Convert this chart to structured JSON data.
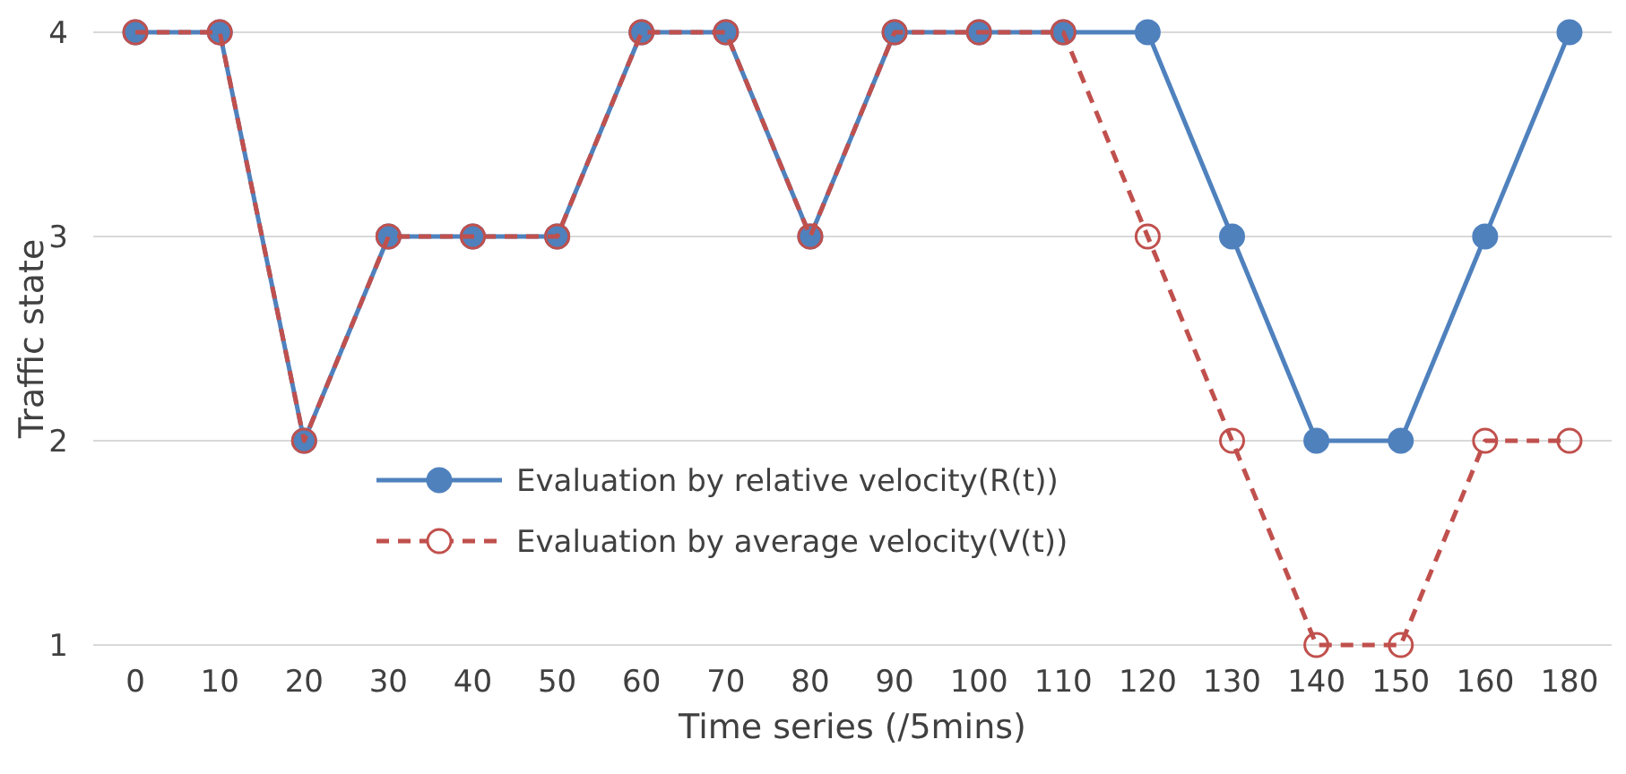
{
  "chart_data": {
    "type": "line",
    "xlabel": "Time series (/5mins)",
    "ylabel": "Traffic state",
    "categories": [
      "0",
      "10",
      "20",
      "30",
      "40",
      "50",
      "60",
      "70",
      "80",
      "90",
      "100",
      "110",
      "120",
      "130",
      "140",
      "150",
      "160",
      "180"
    ],
    "ylim": [
      1,
      4
    ],
    "yticks": [
      1,
      2,
      3,
      4
    ],
    "grid": "y",
    "legend": "center",
    "series": [
      {
        "name": "Evaluation by relative velocity(R(t))",
        "color": "#4f81bd",
        "marker": "circle",
        "line_style": "solid",
        "values": [
          4,
          4,
          2,
          3,
          3,
          3,
          4,
          4,
          3,
          4,
          4,
          4,
          4,
          3,
          2,
          2,
          3,
          4
        ]
      },
      {
        "name": "Evaluation by average velocity(V(t))",
        "color": "#c0504d",
        "marker": "circle",
        "line_style": "dashed",
        "values": [
          4,
          4,
          2,
          3,
          3,
          3,
          4,
          4,
          3,
          4,
          4,
          4,
          3,
          2,
          1,
          1,
          2,
          2
        ]
      }
    ]
  }
}
